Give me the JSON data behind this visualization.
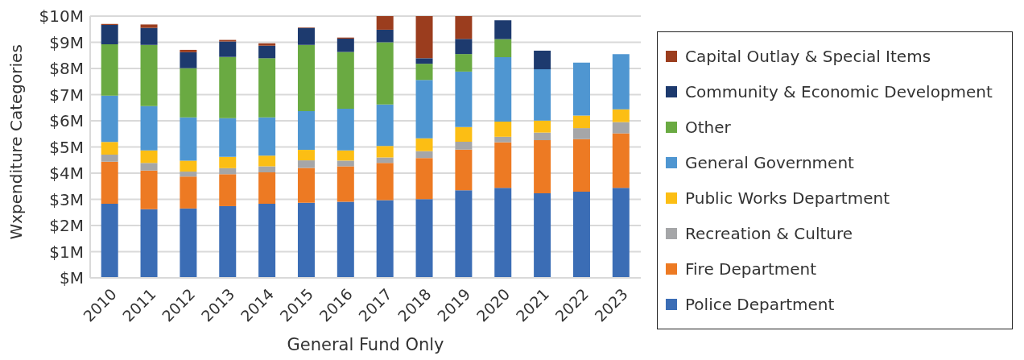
{
  "chart_data": {
    "type": "bar",
    "stacked": true,
    "xlabel": "General Fund Only",
    "ylabel": "Wxpenditure Categories",
    "categories": [
      "2010",
      "2011",
      "2012",
      "2013",
      "2014",
      "2015",
      "2016",
      "2017",
      "2018",
      "2019",
      "2020",
      "2021",
      "2022",
      "2023"
    ],
    "ylim": [
      0,
      10
    ],
    "yticks": [
      {
        "value": 0,
        "label": "$M"
      },
      {
        "value": 1,
        "label": "$1M"
      },
      {
        "value": 2,
        "label": "$2M"
      },
      {
        "value": 3,
        "label": "$3M"
      },
      {
        "value": 4,
        "label": "$4M"
      },
      {
        "value": 5,
        "label": "$5M"
      },
      {
        "value": 6,
        "label": "$6M"
      },
      {
        "value": 7,
        "label": "$7M"
      },
      {
        "value": 8,
        "label": "$8M"
      },
      {
        "value": 9,
        "label": "$9M"
      },
      {
        "value": 10,
        "label": "$10M"
      }
    ],
    "grid": "y",
    "legend": "right",
    "series": [
      {
        "name": "Police Department",
        "color": "#3b6db5",
        "values": [
          2.83,
          2.62,
          2.65,
          2.74,
          2.83,
          2.87,
          2.91,
          2.97,
          3.01,
          3.35,
          3.44,
          3.23,
          3.29,
          3.44
        ]
      },
      {
        "name": "Fire Department",
        "color": "#ed7a23",
        "values": [
          1.61,
          1.48,
          1.22,
          1.22,
          1.2,
          1.33,
          1.35,
          1.42,
          1.57,
          1.55,
          1.74,
          2.03,
          2.01,
          2.08
        ]
      },
      {
        "name": "Recreation & Culture",
        "color": "#a5a6a8",
        "values": [
          0.27,
          0.29,
          0.19,
          0.23,
          0.23,
          0.29,
          0.22,
          0.21,
          0.26,
          0.3,
          0.21,
          0.29,
          0.42,
          0.43
        ]
      },
      {
        "name": "Public Works Department",
        "color": "#fcbe14",
        "values": [
          0.48,
          0.48,
          0.42,
          0.43,
          0.41,
          0.4,
          0.39,
          0.44,
          0.49,
          0.56,
          0.58,
          0.46,
          0.48,
          0.49
        ]
      },
      {
        "name": "General Government",
        "color": "#4f96d1",
        "values": [
          1.77,
          1.69,
          1.65,
          1.48,
          1.46,
          1.48,
          1.59,
          1.58,
          2.23,
          2.12,
          2.46,
          1.96,
          2.02,
          2.11
        ]
      },
      {
        "name": "Other",
        "color": "#6aaa42",
        "values": [
          1.96,
          2.34,
          1.88,
          2.34,
          2.26,
          2.53,
          2.17,
          2.38,
          0.62,
          0.67,
          0.69,
          null,
          null,
          null
        ]
      },
      {
        "name": "Community & Economic Development",
        "color": "#1d3a6e",
        "values": [
          0.74,
          0.65,
          0.61,
          0.59,
          0.48,
          0.65,
          0.51,
          0.48,
          0.21,
          0.58,
          0.72,
          0.71,
          null,
          null
        ]
      },
      {
        "name": "Capital Outlay & Special Items",
        "color": "#9b3d1e",
        "values": [
          0.04,
          0.13,
          0.09,
          0.06,
          0.09,
          0.02,
          0.04,
          0.52,
          1.61,
          0.87,
          null,
          null,
          null,
          null
        ]
      }
    ]
  }
}
